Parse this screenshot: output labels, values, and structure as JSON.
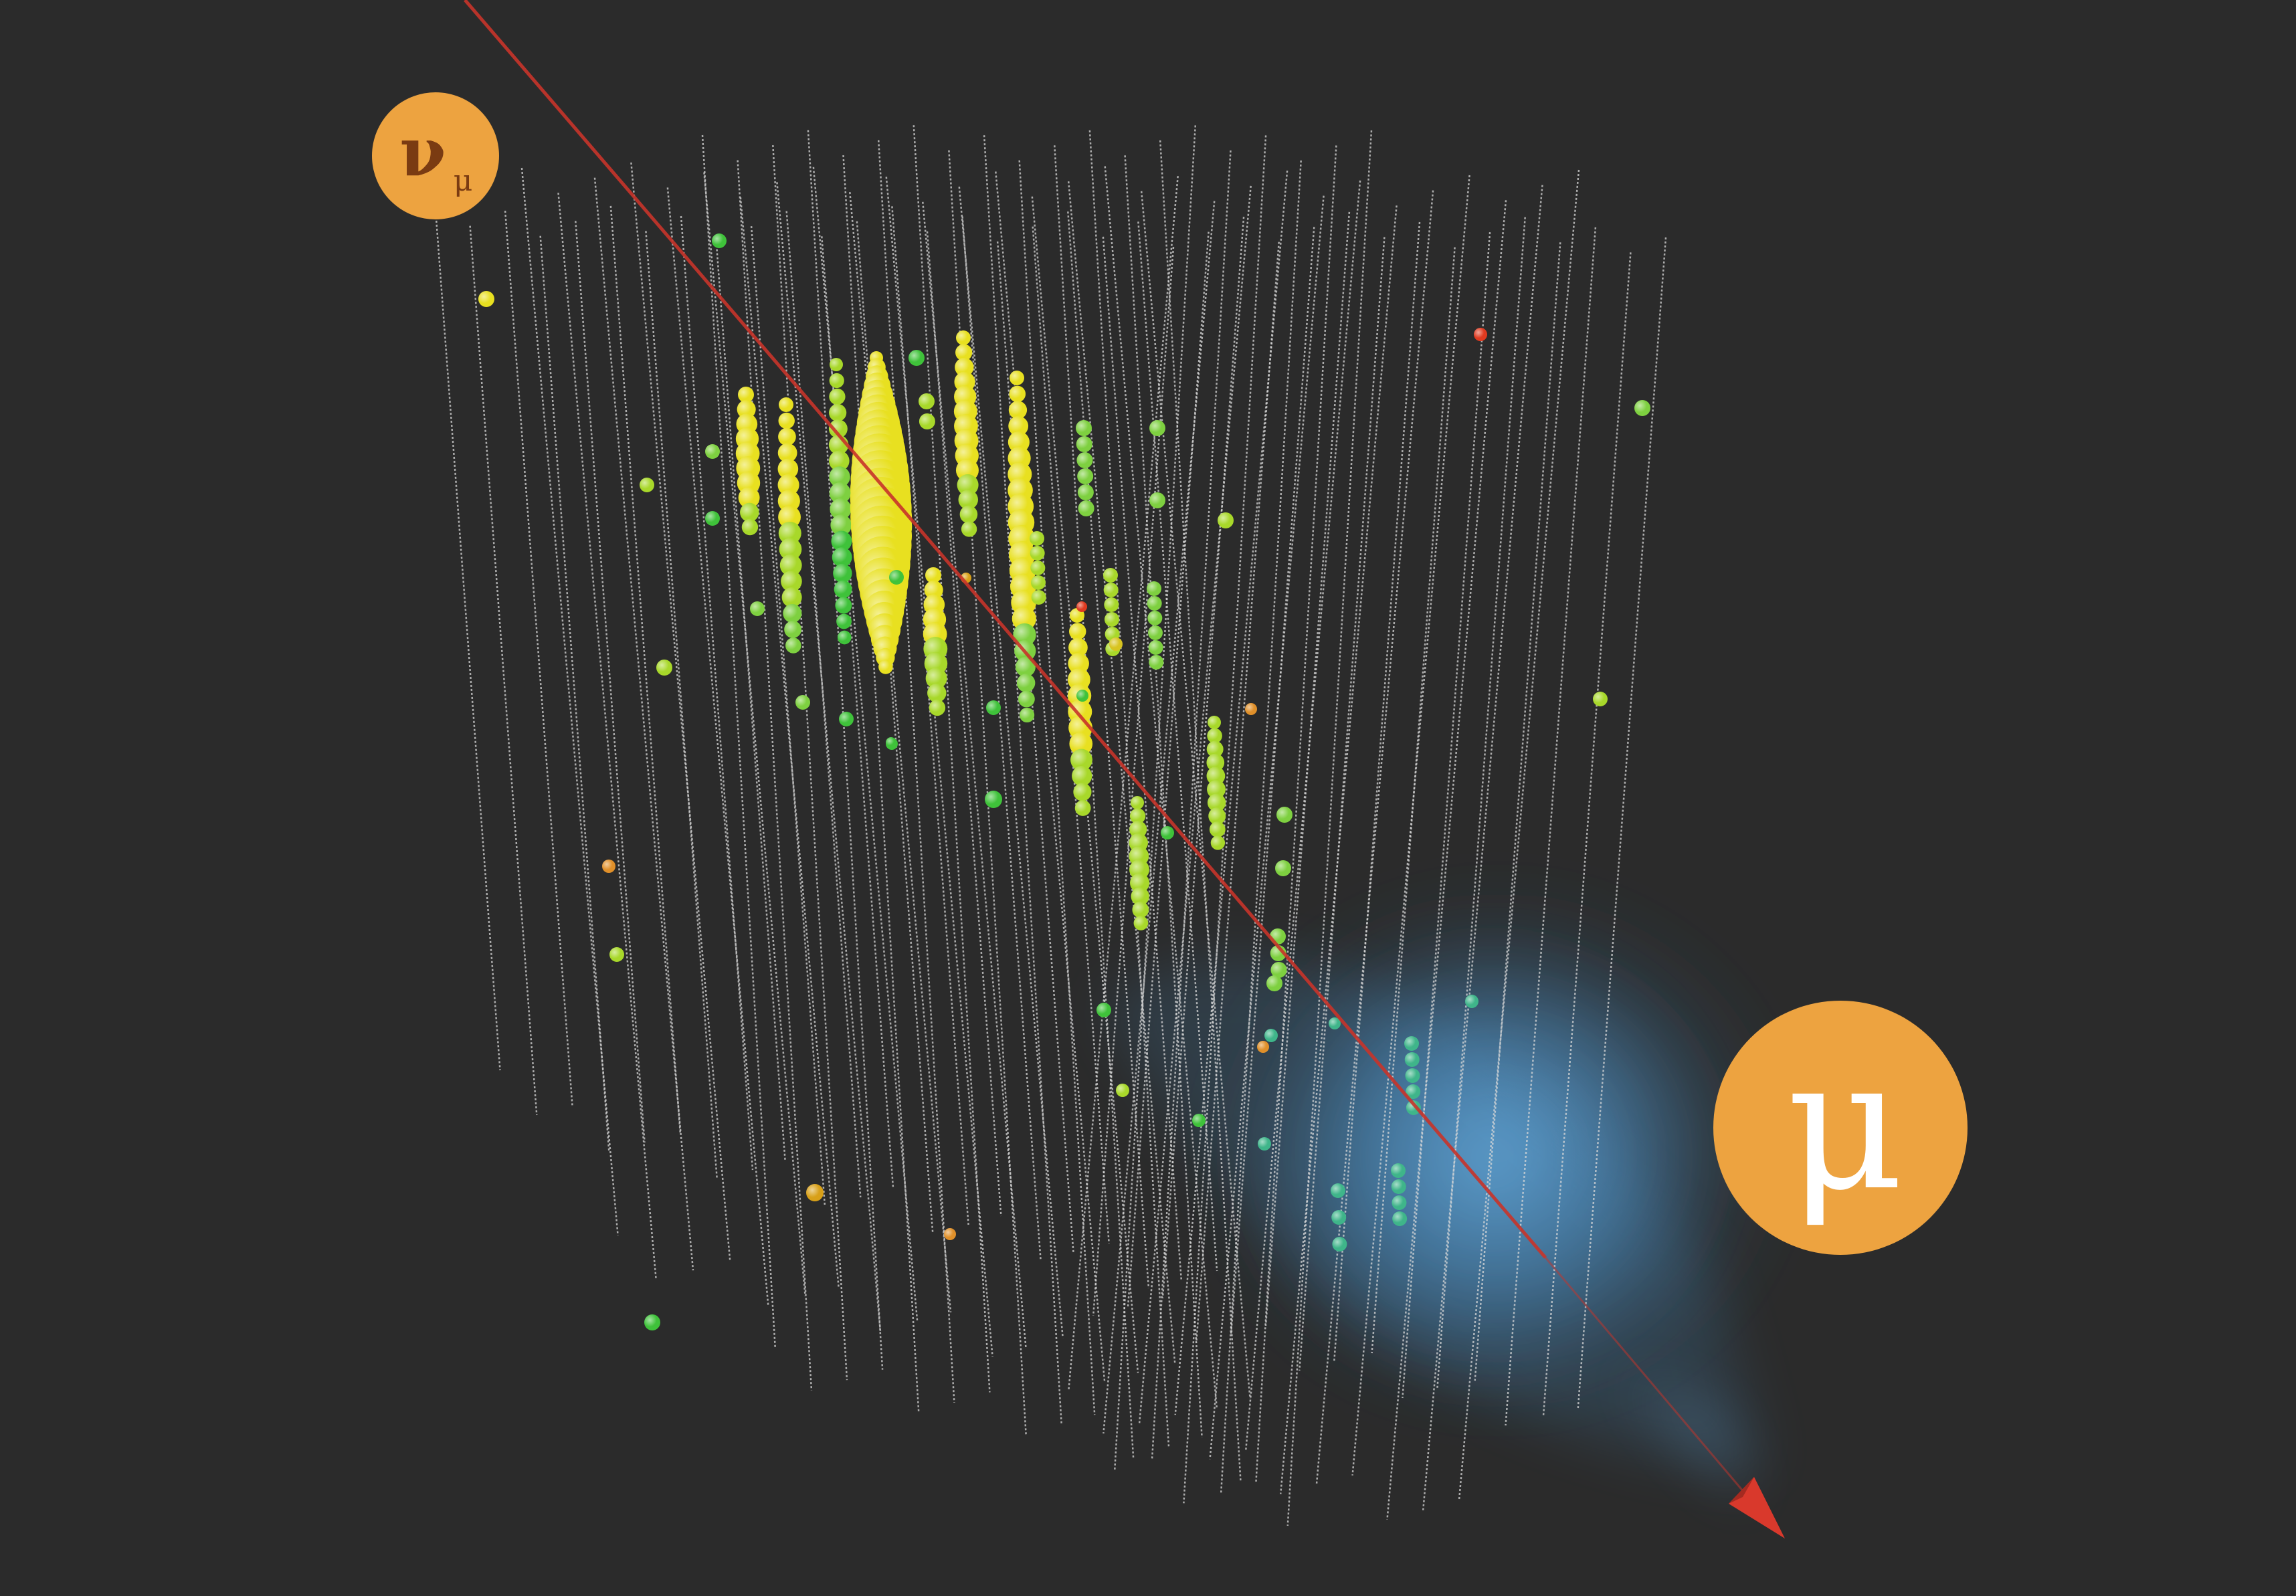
{
  "labels": {
    "neutrino_symbol": "ν",
    "neutrino_subscript": "μ",
    "muon_symbol": "μ"
  },
  "colors": {
    "background": "#2b2b2b",
    "string_line": "#d8d8d8",
    "track": "#c8342a",
    "badge_fill": "#eda340",
    "neutrino_text": "#7a3b12",
    "muon_text": "#ffffff",
    "hit_yellow": "#e8e020",
    "hit_green": "#3fc23a",
    "hit_orange": "#e0902a",
    "hit_red": "#e03a20",
    "cone": "#5aa6e0"
  },
  "icons": {
    "neutrino_badge": "neutrino-badge-icon",
    "muon_badge": "muon-badge-icon",
    "track_arrow": "arrowhead-icon"
  }
}
